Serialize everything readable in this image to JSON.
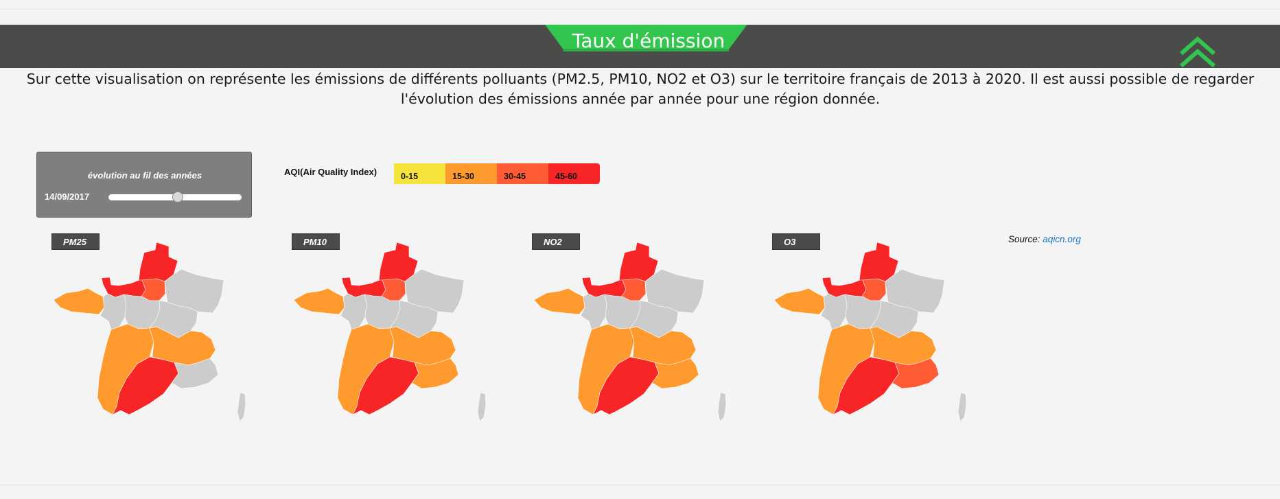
{
  "header": {
    "title": "Taux d'émission"
  },
  "intro": "Sur cette visualisation on représente les émissions de différents polluants (PM2.5, PM10, NO2 et O3) sur le territoire français de 2013 à 2020. Il est aussi possible de regarder l'évolution des émissions année par année pour une région donnée.",
  "slider": {
    "title": "évolution au fil des années",
    "date": "14/09/2017",
    "position": 0.52
  },
  "aqi": {
    "title": "AQI(Air Quality Index)",
    "legend": [
      {
        "label": "0-15",
        "color": "#f5e23a"
      },
      {
        "label": "15-30",
        "color": "#ff9a2e"
      },
      {
        "label": "30-45",
        "color": "#ff5b35"
      },
      {
        "label": "45-60",
        "color": "#f72525"
      }
    ]
  },
  "source": {
    "label": "Source:",
    "link": "aqicn.org"
  },
  "colors": {
    "nodata": "#cccccc",
    "header": "#4b4b4a",
    "accent": "#33c64f",
    "background": "#f4f4f4"
  },
  "maps": [
    {
      "label": "PM25",
      "regions": {
        "bretagne": 1,
        "normandie": 3,
        "hauts_de_france": 3,
        "ile_de_france": 2,
        "grand_est": -1,
        "pays_de_la_loire": -1,
        "centre": -1,
        "bourgogne": -1,
        "nouvelle_aquitaine": 1,
        "auvergne_rhone_alpes": 1,
        "occitanie": 3,
        "paca": -1,
        "corse": -1
      }
    },
    {
      "label": "PM10",
      "regions": {
        "bretagne": 1,
        "normandie": 3,
        "hauts_de_france": 3,
        "ile_de_france": 2,
        "grand_est": -1,
        "pays_de_la_loire": -1,
        "centre": -1,
        "bourgogne": -1,
        "nouvelle_aquitaine": 1,
        "auvergne_rhone_alpes": 1,
        "occitanie": 3,
        "paca": 1,
        "corse": -1
      }
    },
    {
      "label": "NO2",
      "regions": {
        "bretagne": 1,
        "normandie": 3,
        "hauts_de_france": 3,
        "ile_de_france": 2,
        "grand_est": -1,
        "pays_de_la_loire": -1,
        "centre": -1,
        "bourgogne": -1,
        "nouvelle_aquitaine": 1,
        "auvergne_rhone_alpes": 1,
        "occitanie": 3,
        "paca": 1,
        "corse": -1
      }
    },
    {
      "label": "O3",
      "regions": {
        "bretagne": 1,
        "normandie": 3,
        "hauts_de_france": 3,
        "ile_de_france": 2,
        "grand_est": -1,
        "pays_de_la_loire": -1,
        "centre": -1,
        "bourgogne": -1,
        "nouvelle_aquitaine": 1,
        "auvergne_rhone_alpes": 1,
        "occitanie": 3,
        "paca": 2,
        "corse": -1
      }
    }
  ]
}
